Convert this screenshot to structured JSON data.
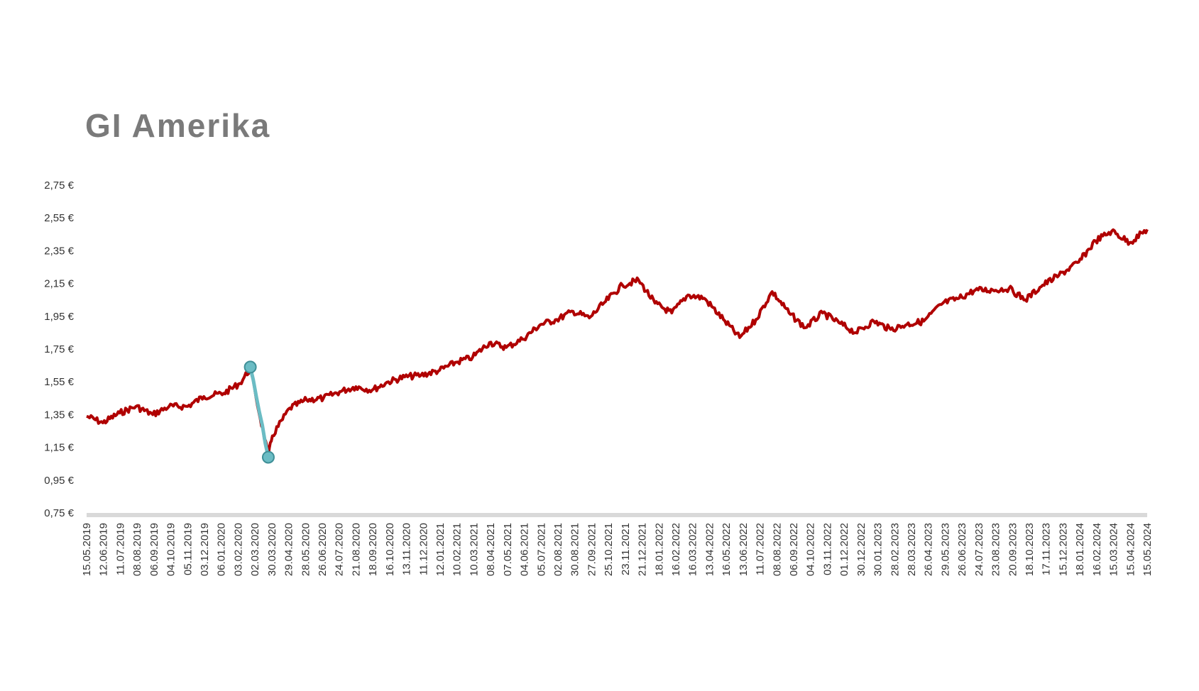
{
  "chart_data": {
    "type": "line",
    "title": "GI Amerika",
    "xlabel": "",
    "ylabel": "",
    "ylim": [
      0.75,
      2.75
    ],
    "y_ticks": [
      "0,75 €",
      "0,95 €",
      "1,15 €",
      "1,35 €",
      "1,55 €",
      "1,75 €",
      "1,95 €",
      "2,15 €",
      "2,35 €",
      "2,55 €",
      "2,75 €"
    ],
    "x_ticks": [
      "15.05.2019",
      "12.06.2019",
      "11.07.2019",
      "08.08.2019",
      "06.09.2019",
      "04.10.2019",
      "05.11.2019",
      "03.12.2019",
      "06.01.2020",
      "03.02.2020",
      "02.03.2020",
      "30.03.2020",
      "29.04.2020",
      "28.05.2020",
      "26.06.2020",
      "24.07.2020",
      "21.08.2020",
      "18.09.2020",
      "16.10.2020",
      "13.11.2020",
      "11.12.2020",
      "12.01.2021",
      "10.02.2021",
      "10.03.2021",
      "08.04.2021",
      "07.05.2021",
      "04.06.2021",
      "05.07.2021",
      "02.08.2021",
      "30.08.2021",
      "27.09.2021",
      "25.10.2021",
      "23.11.2021",
      "21.12.2021",
      "18.01.2022",
      "16.02.2022",
      "16.03.2022",
      "13.04.2022",
      "16.05.2022",
      "13.06.2022",
      "11.07.2022",
      "08.08.2022",
      "06.09.2022",
      "04.10.2022",
      "03.11.2022",
      "01.12.2022",
      "30.12.2022",
      "30.01.2023",
      "28.02.2023",
      "28.03.2023",
      "26.04.2023",
      "29.05.2023",
      "26.06.2023",
      "24.07.2023",
      "23.08.2023",
      "20.09.2023",
      "18.10.2023",
      "17.11.2023",
      "15.12.2023",
      "18.01.2024",
      "16.02.2024",
      "15.03.2024",
      "15.04.2024",
      "15.05.2024"
    ],
    "grid": false,
    "legend": "none",
    "series": [
      {
        "color": "#b00000",
        "points": [
          [
            "15.05.2019",
            1.34
          ],
          [
            "12.06.2019",
            1.3
          ],
          [
            "11.07.2019",
            1.36
          ],
          [
            "08.08.2019",
            1.4
          ],
          [
            "06.09.2019",
            1.35
          ],
          [
            "04.10.2019",
            1.4
          ],
          [
            "05.11.2019",
            1.4
          ],
          [
            "03.12.2019",
            1.46
          ],
          [
            "06.01.2020",
            1.48
          ],
          [
            "03.02.2020",
            1.54
          ],
          [
            "21.02.2020",
            1.63
          ],
          [
            "02.03.2020",
            1.45
          ],
          [
            "23.03.2020",
            1.1
          ],
          [
            "30.03.2020",
            1.22
          ],
          [
            "29.04.2020",
            1.39
          ],
          [
            "28.05.2020",
            1.44
          ],
          [
            "26.06.2020",
            1.45
          ],
          [
            "24.07.2020",
            1.49
          ],
          [
            "21.08.2020",
            1.52
          ],
          [
            "18.09.2020",
            1.5
          ],
          [
            "16.10.2020",
            1.55
          ],
          [
            "13.11.2020",
            1.58
          ],
          [
            "11.12.2020",
            1.59
          ],
          [
            "12.01.2021",
            1.62
          ],
          [
            "10.02.2021",
            1.67
          ],
          [
            "10.03.2021",
            1.7
          ],
          [
            "08.04.2021",
            1.79
          ],
          [
            "07.05.2021",
            1.76
          ],
          [
            "04.06.2021",
            1.81
          ],
          [
            "05.07.2021",
            1.9
          ],
          [
            "02.08.2021",
            1.93
          ],
          [
            "30.08.2021",
            1.98
          ],
          [
            "27.09.2021",
            1.94
          ],
          [
            "25.10.2021",
            2.04
          ],
          [
            "23.11.2021",
            2.14
          ],
          [
            "21.12.2021",
            2.17
          ],
          [
            "18.01.2022",
            2.03
          ],
          [
            "16.02.2022",
            1.97
          ],
          [
            "16.03.2022",
            2.08
          ],
          [
            "13.04.2022",
            2.06
          ],
          [
            "16.05.2022",
            1.93
          ],
          [
            "13.06.2022",
            1.82
          ],
          [
            "11.07.2022",
            1.93
          ],
          [
            "08.08.2022",
            2.1
          ],
          [
            "06.09.2022",
            1.97
          ],
          [
            "04.10.2022",
            1.88
          ],
          [
            "03.11.2022",
            1.97
          ],
          [
            "01.12.2022",
            1.91
          ],
          [
            "30.12.2022",
            1.85
          ],
          [
            "30.01.2023",
            1.92
          ],
          [
            "28.02.2023",
            1.87
          ],
          [
            "28.03.2023",
            1.9
          ],
          [
            "26.04.2023",
            1.92
          ],
          [
            "29.05.2023",
            2.03
          ],
          [
            "26.06.2023",
            2.06
          ],
          [
            "24.07.2023",
            2.11
          ],
          [
            "23.08.2023",
            2.11
          ],
          [
            "20.09.2023",
            2.12
          ],
          [
            "18.10.2023",
            2.05
          ],
          [
            "17.11.2023",
            2.14
          ],
          [
            "15.12.2023",
            2.2
          ],
          [
            "18.01.2024",
            2.28
          ],
          [
            "16.02.2024",
            2.41
          ],
          [
            "15.03.2024",
            2.47
          ],
          [
            "15.04.2024",
            2.4
          ],
          [
            "15.05.2024",
            2.48
          ]
        ]
      },
      {
        "color": "#6bbcc4",
        "points": [
          [
            "21.02.2020",
            1.64
          ],
          [
            "23.03.2020",
            1.09
          ]
        ]
      }
    ],
    "markers": [
      {
        "x": "21.02.2020",
        "y": 1.64,
        "color": "#6bbcc4"
      },
      {
        "x": "23.03.2020",
        "y": 1.09,
        "color": "#6bbcc4"
      }
    ]
  }
}
